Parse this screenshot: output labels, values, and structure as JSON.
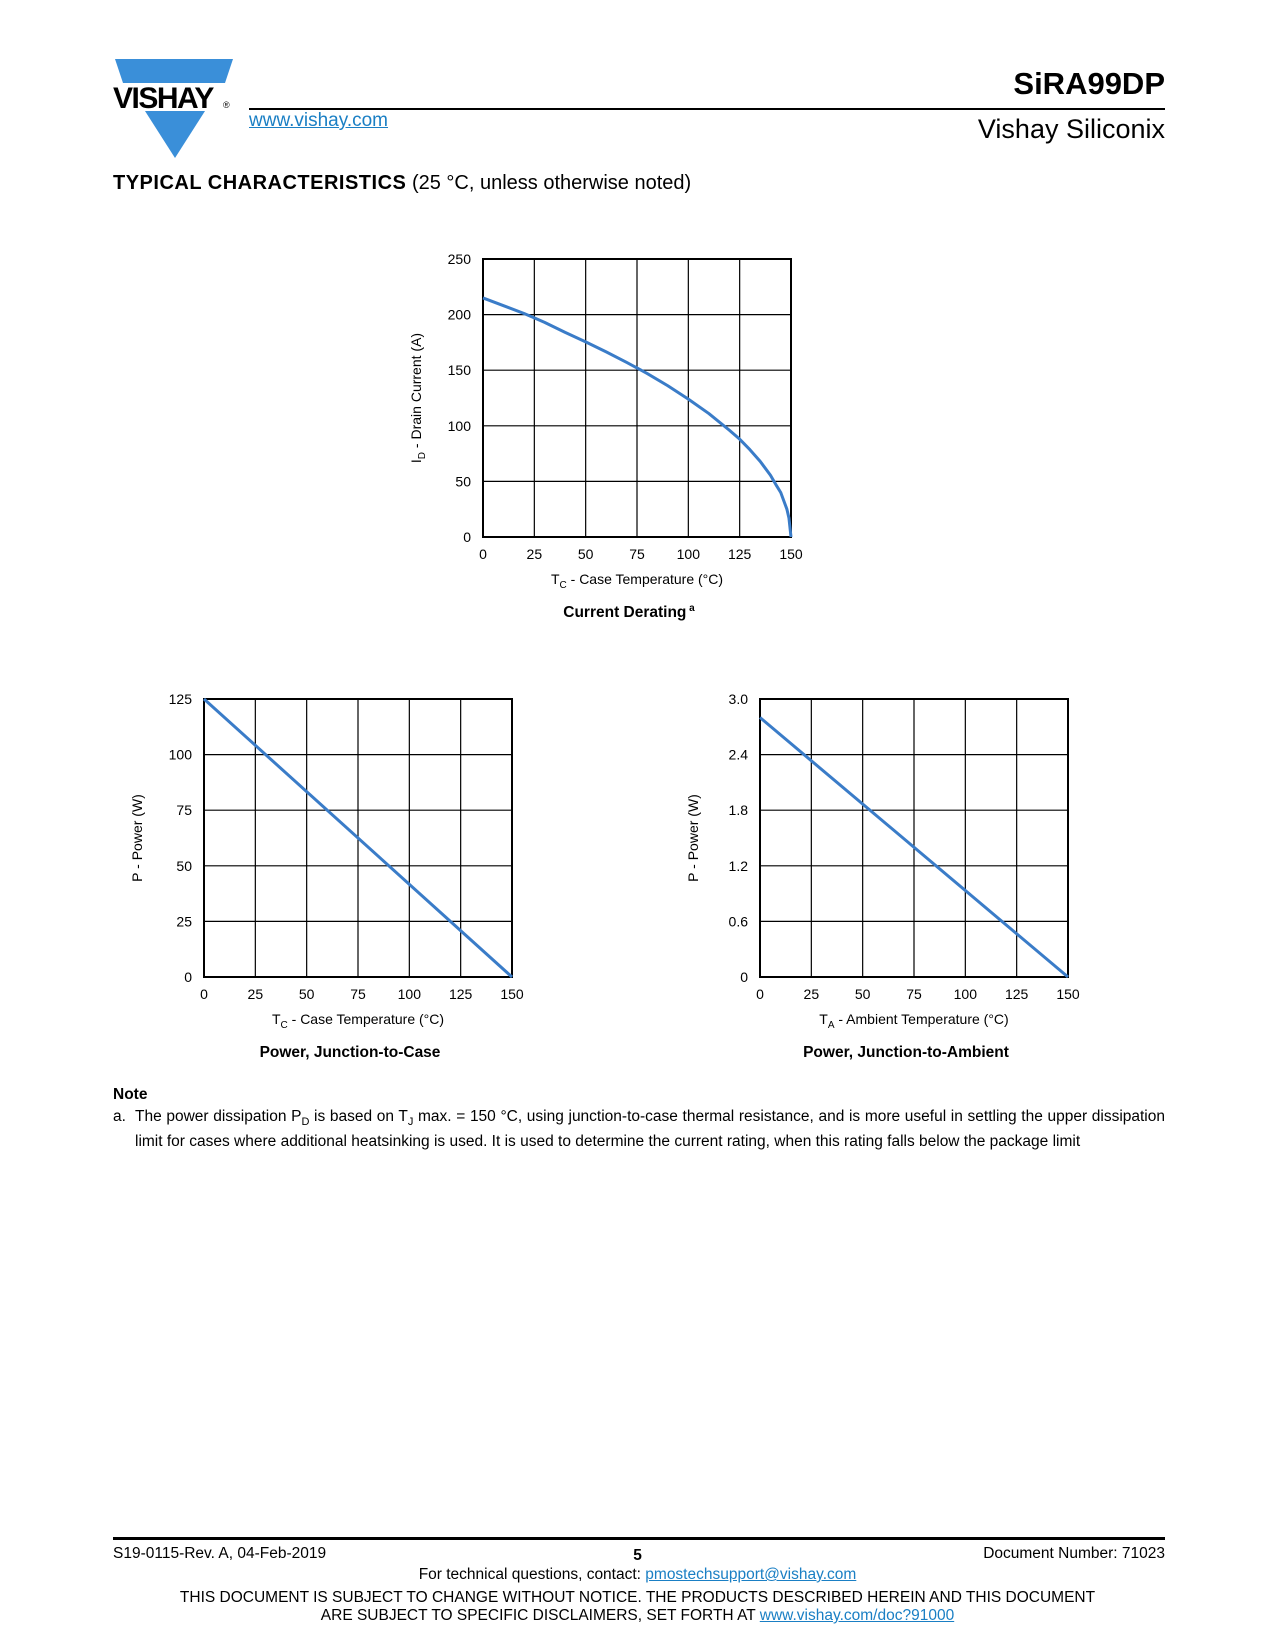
{
  "header": {
    "logo_text": "VISHAY",
    "url": "www.vishay.com",
    "part_number": "SiRA99DP",
    "company": "Vishay Siliconix"
  },
  "section": {
    "title": "TYPICAL CHARACTERISTICS",
    "condition": "(25 °C, unless otherwise noted)"
  },
  "colors": {
    "line": "#3a7cc8",
    "logo": "#3a8fd9",
    "link": "#1a7fc4"
  },
  "chart_data": [
    {
      "type": "line",
      "title": "Current Derating",
      "title_sup": "a",
      "xlabel_main": "T",
      "xlabel_sub": "C",
      "xlabel_rest": " - Case Temperature (°C)",
      "ylabel_main": "I",
      "ylabel_sub": "D",
      "ylabel_rest": " - Drain Current (A)",
      "xlim": [
        0,
        150
      ],
      "ylim": [
        0,
        250
      ],
      "xticks": [
        "0",
        "25",
        "50",
        "75",
        "100",
        "125",
        "150"
      ],
      "yticks": [
        "0",
        "50",
        "100",
        "150",
        "200",
        "250"
      ],
      "grid": true,
      "x": [
        0,
        10,
        20,
        25,
        30,
        40,
        50,
        60,
        70,
        75,
        80,
        90,
        100,
        110,
        120,
        125,
        130,
        135,
        140,
        143,
        145,
        147,
        148,
        149,
        150
      ],
      "y": [
        215,
        208,
        201,
        197,
        193,
        184,
        175.5,
        166.5,
        157,
        152,
        147,
        136,
        124,
        111,
        96,
        88,
        78.5,
        68,
        55.5,
        46,
        40,
        30,
        25,
        17,
        0
      ]
    },
    {
      "type": "line",
      "title": "Power, Junction-to-Case",
      "xlabel_main": "T",
      "xlabel_sub": "C",
      "xlabel_rest": " - Case Temperature (°C)",
      "ylabel_main": "P",
      "ylabel_sub": "",
      "ylabel_rest": " - Power (W)",
      "xlim": [
        0,
        150
      ],
      "ylim": [
        0,
        125
      ],
      "xticks": [
        "0",
        "25",
        "50",
        "75",
        "100",
        "125",
        "150"
      ],
      "yticks": [
        "0",
        "25",
        "50",
        "75",
        "100",
        "125"
      ],
      "grid": true,
      "x": [
        0,
        150
      ],
      "y": [
        125,
        0
      ]
    },
    {
      "type": "line",
      "title": "Power, Junction-to-Ambient",
      "xlabel_main": "T",
      "xlabel_sub": "A",
      "xlabel_rest": " - Ambient Temperature (°C)",
      "ylabel_main": "P",
      "ylabel_sub": "",
      "ylabel_rest": " - Power (W)",
      "xlim": [
        0,
        150
      ],
      "ylim": [
        0,
        3.0
      ],
      "xticks": [
        "0",
        "25",
        "50",
        "75",
        "100",
        "125",
        "150"
      ],
      "yticks": [
        "0",
        "0.6",
        "1.2",
        "1.8",
        "2.4",
        "3.0"
      ],
      "grid": true,
      "x": [
        0,
        150
      ],
      "y": [
        2.8,
        0
      ]
    }
  ],
  "note": {
    "heading": "Note",
    "marker": "a.",
    "text_1": "The power dissipation P",
    "sub_1": "D",
    "text_2": " is based on T",
    "sub_2": "J",
    "text_3": " max. = 150 °C, using junction-to-case thermal resistance, and is more useful in settling the upper dissipation limit for cases where additional heatsinking is used. It is used to determine the current rating, when this rating falls below the package limit"
  },
  "footer": {
    "revision": "S19-0115-Rev. A, 04-Feb-2019",
    "page": "5",
    "doc_number": "Document Number: 71023",
    "contact_text": "For technical questions, contact: ",
    "contact_email": "pmostechsupport@vishay.com",
    "disclaimer_1": "THIS DOCUMENT IS SUBJECT TO CHANGE WITHOUT NOTICE. THE PRODUCTS DESCRIBED HEREIN AND THIS DOCUMENT",
    "disclaimer_2": "ARE SUBJECT TO SPECIFIC DISCLAIMERS, SET FORTH AT ",
    "disclaimer_link": "www.vishay.com/doc?91000"
  }
}
